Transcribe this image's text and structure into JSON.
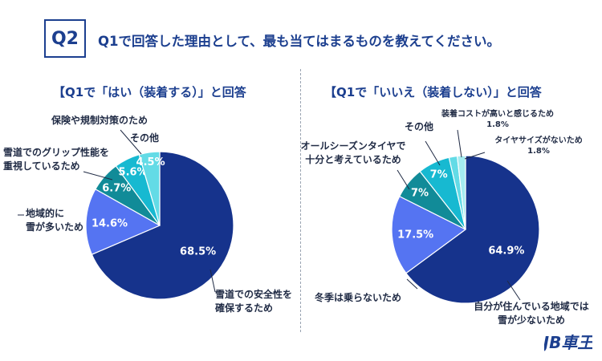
{
  "header": {
    "badge": "Q2",
    "question": "Q1で回答した理由として、最も当てはまるものを教えてください。"
  },
  "logo": {
    "text": "JB車王"
  },
  "chart_data": [
    {
      "type": "pie",
      "title": "【Q1で「はい（装着する）」と回答",
      "slices": [
        {
          "label": "雪道での安全性を確保するため",
          "label_lines": [
            "雪道での安全性を",
            "確保するため"
          ],
          "value": 68.5,
          "value_label": "68.5%",
          "color": "#16338c"
        },
        {
          "label": "地域的に雪が多いため",
          "label_lines": [
            "地域的に",
            "雪が多いため"
          ],
          "value": 14.6,
          "value_label": "14.6%",
          "color": "#5574f2"
        },
        {
          "label": "雪道でのグリップ性能を重視しているため",
          "label_lines": [
            "雪道でのグリップ性能を",
            "重視しているため"
          ],
          "value": 6.7,
          "value_label": "6.7%",
          "color": "#118b98"
        },
        {
          "label": "保険や規制対策のため",
          "label_lines": [
            "保険や規制対策のため"
          ],
          "value": 5.6,
          "value_label": "5.6%",
          "color": "#17b9d1"
        },
        {
          "label": "その他",
          "label_lines": [
            "その他"
          ],
          "value": 4.5,
          "value_label": "4.5%",
          "color": "#63dbe6"
        }
      ]
    },
    {
      "type": "pie",
      "title": "【Q1で「いいえ（装着しない）」と回答",
      "slices": [
        {
          "label": "自分が住んでいる地域では雪が少ないため",
          "label_lines": [
            "自分が住んでいる地域では",
            "雪が少ないため"
          ],
          "value": 64.9,
          "value_label": "64.9%",
          "color": "#16338c"
        },
        {
          "label": "冬季は乗らないため",
          "label_lines": [
            "冬季は乗らないため"
          ],
          "value": 17.5,
          "value_label": "17.5%",
          "color": "#5574f2"
        },
        {
          "label": "オールシーズンタイヤで十分と考えているため",
          "label_lines": [
            "オールシーズンタイヤで",
            "十分と考えているため"
          ],
          "value": 7,
          "value_label": "7%",
          "color": "#118b98"
        },
        {
          "label": "その他",
          "label_lines": [
            "その他"
          ],
          "value": 7,
          "value_label": "7%",
          "color": "#17b9d1"
        },
        {
          "label": "装着コストが高いと感じるため",
          "label_lines": [
            "装着コストが高いと感じるため",
            "1.8%"
          ],
          "value": 1.8,
          "value_label": "",
          "color": "#63dbe6"
        },
        {
          "label": "タイヤサイズがないため",
          "label_lines": [
            "タイヤサイズがないため",
            "1.8%"
          ],
          "value": 1.8,
          "value_label": "",
          "color": "#a4ecf0"
        }
      ]
    }
  ]
}
